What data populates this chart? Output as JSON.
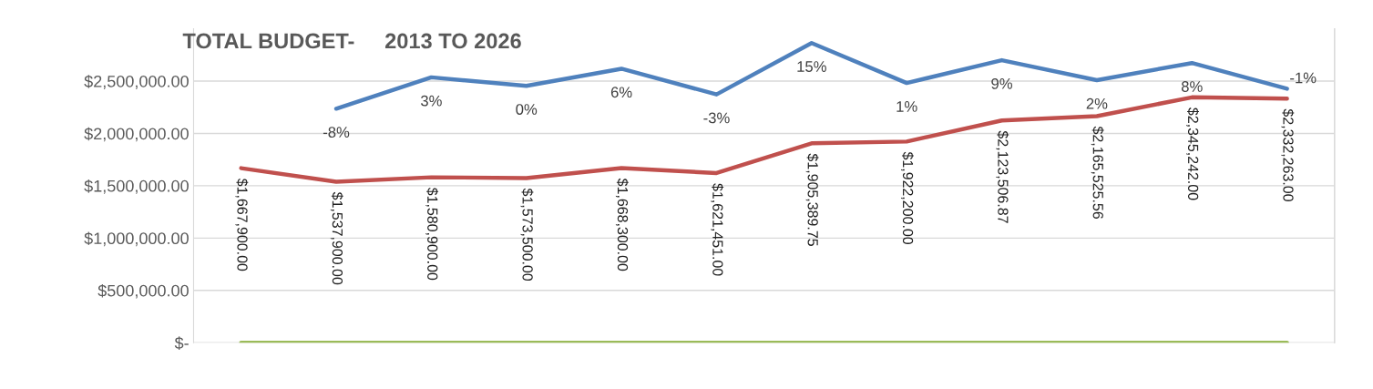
{
  "chart_data": {
    "type": "line",
    "title": "TOTAL BUDGET-     2013 TO 2026",
    "categories": [
      null,
      null,
      null,
      null,
      null,
      null,
      null,
      null,
      null,
      null,
      null,
      null
    ],
    "series": [
      {
        "color": "#4f81bd",
        "axis": "y2",
        "values": [
          null,
          -8,
          3,
          0,
          6,
          -3,
          15,
          1,
          9,
          2,
          8,
          -1
        ],
        "value_labels": [
          null,
          "-8%",
          "3%",
          "0%",
          "6%",
          "-3%",
          "15%",
          "1%",
          "9%",
          "2%",
          "8%",
          "-1%"
        ]
      },
      {
        "color": "#c0504d",
        "values": [
          1667900.0,
          1537900.0,
          1580900.0,
          1573500.0,
          1668300.0,
          1621451.0,
          1905389.75,
          1922200.0,
          2123506.87,
          2165525.56,
          2345242.0,
          2332263.0
        ],
        "value_labels": [
          "$1,667,900.00",
          "$1,537,900.00",
          "$1,580,900.00",
          "$1,573,500.00",
          "$1,668,300.00",
          "$1,621,451.00",
          "$1,905,389.75",
          "$1,922,200.00",
          "$2,123,506.87",
          "$2,165,525.56",
          "$2,345,242.00",
          "$2,332,263.00"
        ]
      },
      {
        "color": "#9bbb59",
        "values": [
          0,
          0,
          0,
          0,
          0,
          0,
          0,
          0,
          0,
          0,
          0,
          0
        ]
      }
    ],
    "ylim": [
      0,
      3000000
    ],
    "yticks": [
      {
        "value": 0,
        "label": "$-"
      },
      {
        "value": 500000,
        "label": "$500,000.00"
      },
      {
        "value": 1000000,
        "label": "$1,000,000.00"
      },
      {
        "value": 1500000,
        "label": "$1,500,000.00"
      },
      {
        "value": 2000000,
        "label": "$2,000,000.00"
      },
      {
        "value": 2500000,
        "label": "$2,500,000.00"
      }
    ],
    "y2lim": [
      -90,
      20
    ],
    "grid": "y",
    "tick_labels": "y",
    "legend": false,
    "marker": "none",
    "line_style": "solid"
  }
}
